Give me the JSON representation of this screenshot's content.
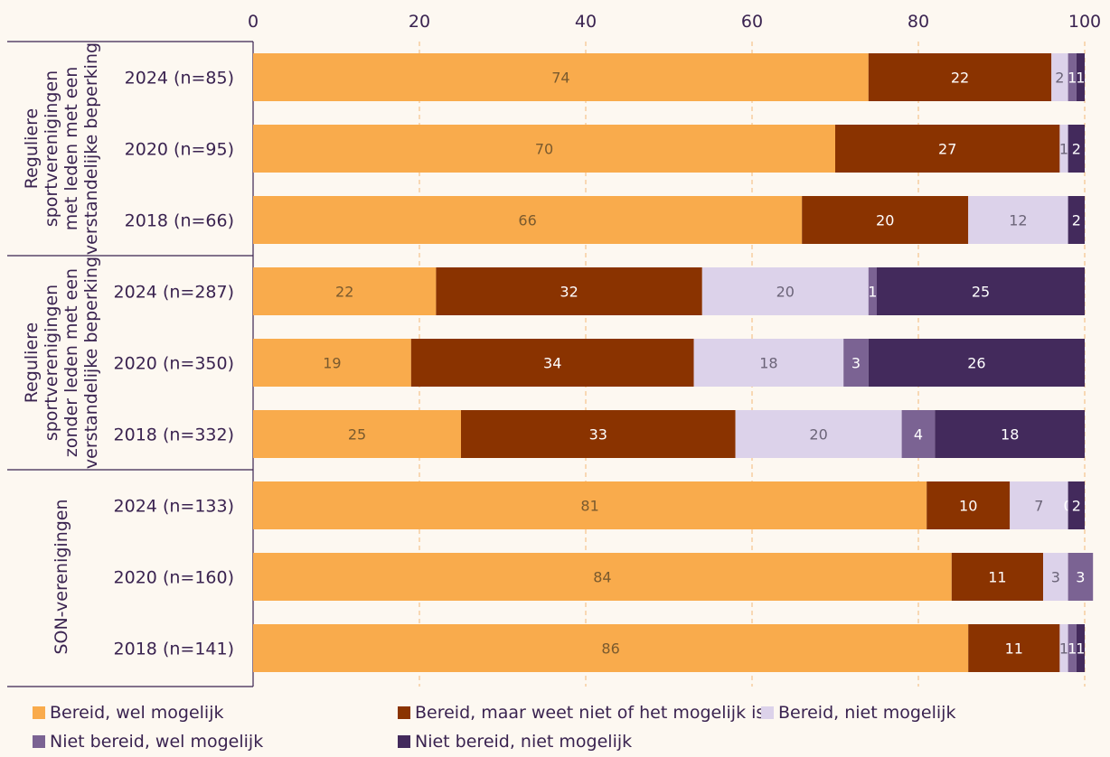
{
  "chart_data": {
    "type": "bar",
    "orientation": "horizontal",
    "stacked": true,
    "xlim": [
      0,
      100
    ],
    "xticks": [
      "0",
      "20",
      "40",
      "60",
      "80",
      "100"
    ],
    "groups": [
      {
        "label": "Reguliere sportverenigingen met leden met een verstandelijke beperking",
        "label_lines": [
          "Reguliere",
          "sportverenigingen",
          "met leden met een",
          "verstandelijke beperking"
        ]
      },
      {
        "label": "Reguliere sportverenigingen zonder leden met een verstandelijke beperking",
        "label_lines": [
          "Reguliere",
          "sportverenigingen",
          "zonder leden met een",
          "verstandelijke beperking"
        ]
      },
      {
        "label": "SON-verenigingen",
        "label_lines": [
          "SON-verenigingen"
        ]
      }
    ],
    "categories": [
      "2024 (n=85)",
      "2020 (n=95)",
      "2018 (n=66)",
      "2024 (n=287)",
      "2020 (n=350)",
      "2018 (n=332)",
      "2024 (n=133)",
      "2020 (n=160)",
      "2018 (n=141)"
    ],
    "series": [
      {
        "name": "Bereid, wel mogelijk",
        "color": "#f9ab4c",
        "label_color": "#7a5a2e",
        "values": [
          74,
          70,
          66,
          22,
          19,
          25,
          81,
          84,
          86
        ]
      },
      {
        "name": "Bereid, maar weet niet of het mogelijk is",
        "color": "#8a3300",
        "label_color": "#ffffff",
        "values": [
          22,
          27,
          20,
          32,
          34,
          33,
          10,
          11,
          11
        ]
      },
      {
        "name": "Bereid, niet mogelijk",
        "color": "#dcd2ea",
        "label_color": "#6b6478",
        "values": [
          2,
          1,
          12,
          20,
          18,
          20,
          7,
          3,
          1
        ]
      },
      {
        "name": "Niet bereid, wel mogelijk",
        "color": "#7b6393",
        "label_color": "#ffffff",
        "values": [
          1,
          0,
          0,
          1,
          3,
          4,
          0,
          3,
          1
        ]
      },
      {
        "name": "Niet bereid, niet mogelijk",
        "color": "#432a5c",
        "label_color": "#ffffff",
        "values": [
          1,
          2,
          2,
          25,
          26,
          18,
          2,
          0,
          1
        ]
      }
    ],
    "data_labels": [
      [
        "74",
        "22",
        "2",
        "1",
        "1"
      ],
      [
        "70",
        "27",
        "1",
        "",
        "2"
      ],
      [
        "66",
        "20",
        "12",
        "",
        "2"
      ],
      [
        "22",
        "32",
        "20",
        "1",
        "25"
      ],
      [
        "19",
        "34",
        "18",
        "3",
        "26"
      ],
      [
        "25",
        "33",
        "20",
        "4",
        "18"
      ],
      [
        "81",
        "10",
        "7",
        "0",
        "2"
      ],
      [
        "84",
        "11",
        "3",
        "3",
        ""
      ],
      [
        "86",
        "11",
        "1",
        "1",
        "1"
      ]
    ],
    "legend_position": "bottom",
    "grid": true
  }
}
